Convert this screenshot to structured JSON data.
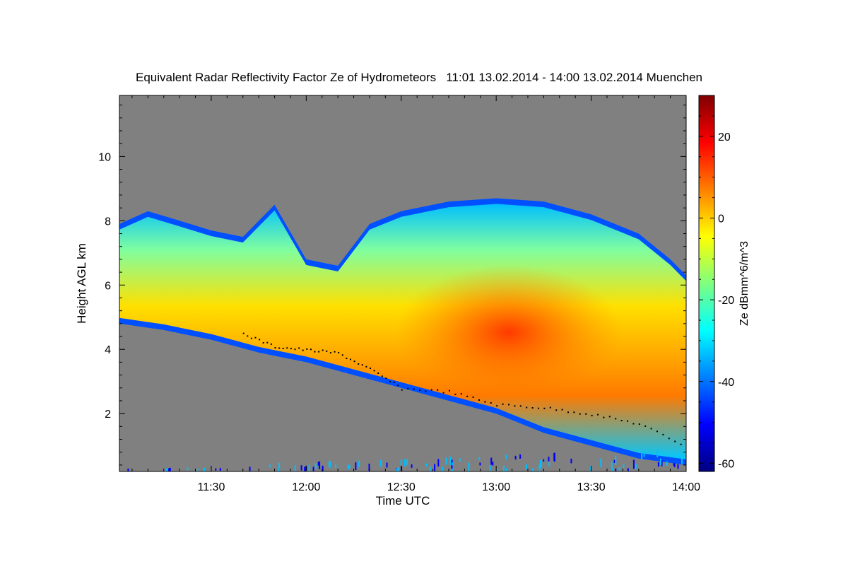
{
  "chart_data": {
    "type": "heatmap",
    "title": "Equivalent Radar Reflectivity Factor Ze of Hydrometeors   11:01 13.02.2014 - 14:00 13.02.2014 Muenchen",
    "xlabel": "Time UTC",
    "ylabel": "Height AGL km",
    "xlim": [
      "11:01",
      "14:00"
    ],
    "ylim": [
      0.2,
      11.9
    ],
    "x_ticks": [
      "11:30",
      "12:00",
      "12:30",
      "13:00",
      "13:30",
      "14:00"
    ],
    "y_ticks": [
      2,
      4,
      6,
      8,
      10
    ],
    "colorbar": {
      "label": "Ze dBmm^6/m^3",
      "range": [
        -62,
        30
      ],
      "ticks": [
        20,
        0,
        -20,
        -40,
        -60
      ],
      "colors": [
        "#00007f",
        "#0000ff",
        "#007fff",
        "#00ffff",
        "#7fff7f",
        "#ffff00",
        "#ff7f00",
        "#ff0000",
        "#7f0000"
      ]
    },
    "background_color": "#808080",
    "cloud_top_km": [
      [
        "11:01",
        7.9
      ],
      [
        "11:10",
        8.3
      ],
      [
        "11:20",
        8.0
      ],
      [
        "11:30",
        7.7
      ],
      [
        "11:40",
        7.5
      ],
      [
        "11:50",
        8.5
      ],
      [
        "12:00",
        6.8
      ],
      [
        "12:10",
        6.6
      ],
      [
        "12:20",
        7.9
      ],
      [
        "12:30",
        8.3
      ],
      [
        "12:45",
        8.6
      ],
      [
        "13:00",
        8.7
      ],
      [
        "13:15",
        8.6
      ],
      [
        "13:30",
        8.2
      ],
      [
        "13:45",
        7.6
      ],
      [
        "13:55",
        6.8
      ],
      [
        "14:00",
        6.3
      ]
    ],
    "cloud_base_km": [
      [
        "11:01",
        4.8
      ],
      [
        "11:15",
        4.6
      ],
      [
        "11:30",
        4.3
      ],
      [
        "11:45",
        3.9
      ],
      [
        "12:00",
        3.6
      ],
      [
        "12:15",
        3.2
      ],
      [
        "12:30",
        2.8
      ],
      [
        "12:45",
        2.4
      ],
      [
        "13:00",
        2.0
      ],
      [
        "13:15",
        1.4
      ],
      [
        "13:30",
        1.0
      ],
      [
        "13:45",
        0.6
      ],
      [
        "14:00",
        0.4
      ]
    ],
    "cloud_base_detections_km": [
      [
        "11:40",
        4.5
      ],
      [
        "11:50",
        4.1
      ],
      [
        "12:00",
        4.0
      ],
      [
        "12:10",
        3.9
      ],
      [
        "12:20",
        3.4
      ],
      [
        "12:30",
        2.8
      ],
      [
        "12:45",
        2.7
      ],
      [
        "13:00",
        2.3
      ],
      [
        "13:15",
        2.2
      ],
      [
        "13:30",
        2.0
      ],
      [
        "13:45",
        1.7
      ],
      [
        "14:00",
        1.0
      ]
    ]
  }
}
